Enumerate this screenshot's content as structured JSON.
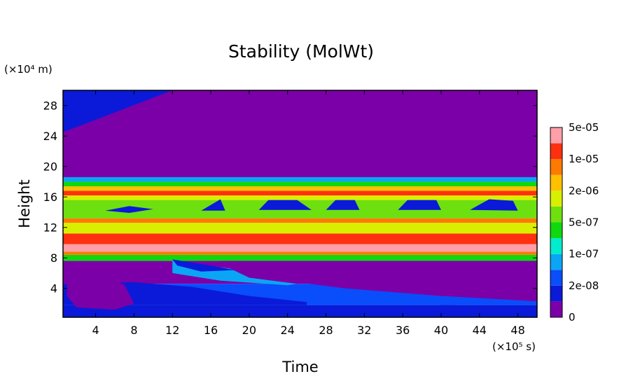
{
  "chart_data": {
    "type": "heatmap",
    "title": "Stability (MolWt)",
    "xlabel": "Time",
    "ylabel": "Height",
    "x_unit_label": "(×10⁵ s)",
    "y_unit_label": "(×10⁴ m)",
    "xlim": [
      0.6,
      50
    ],
    "ylim": [
      0.2,
      30
    ],
    "x_ticks": [
      4,
      8,
      12,
      16,
      20,
      24,
      28,
      32,
      36,
      40,
      44,
      48
    ],
    "y_ticks": [
      4,
      8,
      12,
      16,
      20,
      24,
      28
    ],
    "colorbar": {
      "levels": [
        "0",
        "2e-08",
        "1e-07",
        "5e-07",
        "2e-06",
        "1e-05",
        "5e-05"
      ],
      "colors": [
        "#7b00a8",
        "#0a1ad8",
        "#0a4dfa",
        "#0aa6f5",
        "#00eccc",
        "#10d810",
        "#6ee010",
        "#d8f000",
        "#ffc000",
        "#ff7a00",
        "#ff3010",
        "#ff9fa8"
      ]
    },
    "bands": [
      {
        "ymin": 0.2,
        "ymax": 1.8,
        "level": 1
      },
      {
        "ymin": 1.8,
        "ymax": 4.6,
        "level": 2
      },
      {
        "ymin": 4.6,
        "ymax": 7.6,
        "level": 0
      },
      {
        "ymin": 7.6,
        "ymax": 8.4,
        "level": 5
      },
      {
        "ymin": 8.4,
        "ymax": 8.8,
        "level": 9
      },
      {
        "ymin": 8.8,
        "ymax": 9.8,
        "level": 11
      },
      {
        "ymin": 9.8,
        "ymax": 11.2,
        "level": 10
      },
      {
        "ymin": 11.2,
        "ymax": 12.6,
        "level": 7
      },
      {
        "ymin": 12.6,
        "ymax": 13.2,
        "level": 9
      },
      {
        "ymin": 13.2,
        "ymax": 15.6,
        "level": 6
      },
      {
        "ymin": 15.6,
        "ymax": 16.2,
        "level": 7
      },
      {
        "ymin": 16.2,
        "ymax": 16.8,
        "level": 10
      },
      {
        "ymin": 16.8,
        "ymax": 17.4,
        "level": 8
      },
      {
        "ymin": 17.4,
        "ymax": 18.0,
        "level": 5
      },
      {
        "ymin": 18.0,
        "ymax": 18.6,
        "level": 3
      },
      {
        "ymin": 18.6,
        "ymax": 30.0,
        "level": 0
      }
    ],
    "features": [
      {
        "name": "upper-left-plume",
        "level": 1,
        "points": [
          [
            0.6,
            30
          ],
          [
            12,
            30
          ],
          [
            0.6,
            24.5
          ]
        ]
      },
      {
        "name": "lower-purple-wedge",
        "level": 0,
        "points": [
          [
            17,
            7.6
          ],
          [
            50,
            7.6
          ],
          [
            50,
            2.3
          ],
          [
            40,
            3
          ],
          [
            30,
            4
          ],
          [
            22,
            5.3
          ],
          [
            17,
            6.2
          ]
        ]
      },
      {
        "name": "lower-dark-zone",
        "level": 1,
        "points": [
          [
            28,
            0.2
          ],
          [
            50,
            0.2
          ],
          [
            50,
            1.6
          ],
          [
            40,
            1.8
          ]
        ]
      },
      {
        "name": "upper-dark-band",
        "level": 1,
        "points": [
          [
            0.6,
            4.6
          ],
          [
            8,
            4.8
          ],
          [
            14,
            4.2
          ],
          [
            20,
            3
          ],
          [
            26,
            2.2
          ],
          [
            26,
            1.8
          ],
          [
            0.6,
            1.8
          ]
        ]
      },
      {
        "name": "left-purple-blob",
        "level": 0,
        "points": [
          [
            1,
            5.2
          ],
          [
            4,
            6
          ],
          [
            7,
            4.5
          ],
          [
            8,
            2
          ],
          [
            6,
            1.2
          ],
          [
            2,
            1.5
          ],
          [
            1,
            3
          ]
        ]
      },
      {
        "name": "cyan-lobe",
        "level": 3,
        "points": [
          [
            12,
            7.6
          ],
          [
            18,
            6.6
          ],
          [
            20,
            5.4
          ],
          [
            25,
            4.6
          ],
          [
            24,
            4.4
          ],
          [
            17,
            5
          ],
          [
            12,
            6
          ]
        ]
      },
      {
        "name": "dark-blue-streak",
        "level": 1,
        "points": [
          [
            12,
            7.8
          ],
          [
            16,
            7
          ],
          [
            18.5,
            6.4
          ],
          [
            15,
            6.2
          ],
          [
            12.5,
            7
          ]
        ]
      },
      {
        "name": "dark-blue-cell-1",
        "level": 1,
        "points": [
          [
            5,
            14.2
          ],
          [
            7.5,
            14.8
          ],
          [
            10,
            14.4
          ],
          [
            7.5,
            13.9
          ]
        ]
      },
      {
        "name": "dark-blue-cell-2",
        "level": 1,
        "points": [
          [
            15,
            14.2
          ],
          [
            17,
            15.7
          ],
          [
            17.5,
            14.2
          ]
        ]
      },
      {
        "name": "dark-blue-cell-3",
        "level": 1,
        "points": [
          [
            21,
            14.3
          ],
          [
            22,
            15.6
          ],
          [
            25,
            15.6
          ],
          [
            26.5,
            14.3
          ]
        ]
      },
      {
        "name": "dark-blue-cell-4",
        "level": 1,
        "points": [
          [
            28,
            14.3
          ],
          [
            29,
            15.6
          ],
          [
            31,
            15.6
          ],
          [
            31.5,
            14.3
          ]
        ]
      },
      {
        "name": "dark-blue-cell-5",
        "level": 1,
        "points": [
          [
            35.5,
            14.3
          ],
          [
            36.5,
            15.6
          ],
          [
            39.5,
            15.6
          ],
          [
            40,
            14.3
          ]
        ]
      },
      {
        "name": "dark-blue-cell-6",
        "level": 1,
        "points": [
          [
            43,
            14.3
          ],
          [
            45,
            15.7
          ],
          [
            47.5,
            15.5
          ],
          [
            48,
            14.2
          ]
        ]
      }
    ]
  }
}
